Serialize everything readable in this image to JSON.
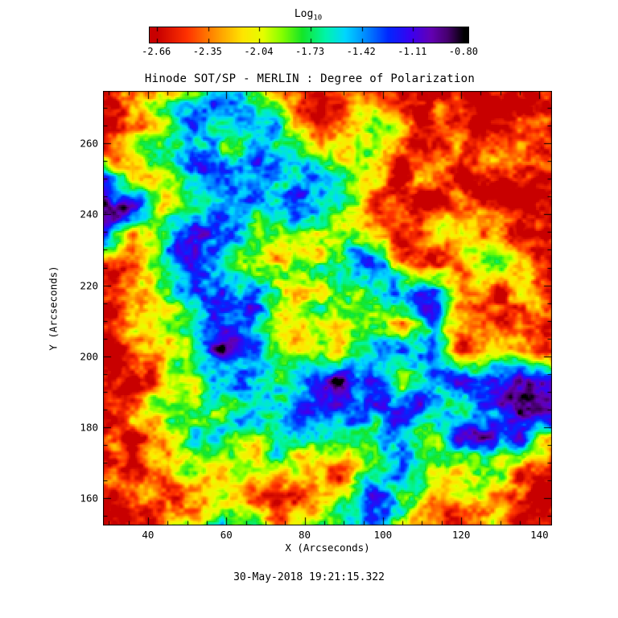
{
  "title": "Hinode SOT/SP - MERLIN : Degree of Polarization",
  "timestamp": "30-May-2018 19:21:15.322",
  "colorbar": {
    "label_main": "Log",
    "label_sub": "10",
    "ticks": [
      -2.66,
      -2.35,
      -2.04,
      -1.73,
      -1.42,
      -1.11,
      -0.8
    ],
    "tick_labels": [
      "-2.66",
      "-2.35",
      "-2.04",
      "-1.73",
      "-1.42",
      "-1.11",
      "-0.80"
    ]
  },
  "chart_data": {
    "type": "heatmap",
    "title": "Hinode SOT/SP - MERLIN : Degree of Polarization",
    "xlabel": "X (Arcseconds)",
    "ylabel": "Y (Arcseconds)",
    "xlim": [
      28.5,
      143.2
    ],
    "ylim": [
      152.3,
      274.8
    ],
    "x_ticks": [
      40,
      60,
      80,
      100,
      120,
      140
    ],
    "y_ticks": [
      160,
      180,
      200,
      220,
      240,
      260
    ],
    "colorbar_label": "Log10",
    "colorbar_ticks": [
      -2.66,
      -2.35,
      -2.04,
      -1.73,
      -1.42,
      -1.11,
      -0.8
    ],
    "value_range": [
      -2.66,
      -0.8
    ],
    "legend_position": "top-colorbar",
    "grid": "off",
    "colormap": [
      [
        -2.66,
        200,
        0,
        0
      ],
      [
        -2.48,
        255,
        50,
        0
      ],
      [
        -2.3,
        255,
        150,
        0
      ],
      [
        -2.14,
        255,
        230,
        0
      ],
      [
        -2.02,
        230,
        255,
        0
      ],
      [
        -1.9,
        130,
        255,
        0
      ],
      [
        -1.78,
        20,
        230,
        40
      ],
      [
        -1.64,
        0,
        245,
        170
      ],
      [
        -1.52,
        0,
        215,
        255
      ],
      [
        -1.4,
        0,
        140,
        255
      ],
      [
        -1.26,
        0,
        40,
        255
      ],
      [
        -1.12,
        60,
        0,
        240
      ],
      [
        -1.0,
        100,
        0,
        180
      ],
      [
        -0.9,
        70,
        0,
        110
      ],
      [
        -0.8,
        0,
        0,
        0
      ]
    ],
    "values_note": "coarse 16x16 estimate of log10 polarization degree; row 0 = top of map (y~273), col 0 = left (x~29)",
    "values": [
      [
        -2.6,
        -2.5,
        -2.2,
        -1.8,
        -1.6,
        -1.85,
        -2.2,
        -2.55,
        -2.6,
        -2.3,
        -2.55,
        -2.6,
        -2.6,
        -2.55,
        -2.6,
        -2.6
      ],
      [
        -2.6,
        -2.3,
        -1.85,
        -1.3,
        -1.6,
        -1.3,
        -1.85,
        -2.3,
        -2.5,
        -1.9,
        -2.3,
        -2.6,
        -2.6,
        -2.5,
        -2.6,
        -2.6
      ],
      [
        -2.55,
        -2.25,
        -1.6,
        -1.3,
        -1.85,
        -1.55,
        -1.3,
        -1.85,
        -2.3,
        -1.9,
        -2.3,
        -2.6,
        -2.55,
        -2.3,
        -2.6,
        -2.6
      ],
      [
        -1.1,
        -2.2,
        -1.85,
        -1.55,
        -1.3,
        -1.3,
        -1.55,
        -1.3,
        -1.9,
        -2.25,
        -2.55,
        -2.3,
        -2.6,
        -2.6,
        -2.55,
        -2.6
      ],
      [
        -0.85,
        -1.0,
        -2.2,
        -1.55,
        -1.3,
        -1.45,
        -1.3,
        -1.55,
        -1.85,
        -2.25,
        -2.6,
        -2.55,
        -2.3,
        -2.6,
        -2.6,
        -2.6
      ],
      [
        -1.05,
        -2.25,
        -1.85,
        -1.3,
        -1.45,
        -1.6,
        -2.0,
        -2.05,
        -1.85,
        -2.3,
        -2.55,
        -2.3,
        -1.9,
        -2.3,
        -2.6,
        -2.6
      ],
      [
        -2.5,
        -2.3,
        -1.6,
        -1.3,
        -1.6,
        -1.85,
        -2.05,
        -1.9,
        -1.6,
        -1.3,
        -2.25,
        -2.55,
        -2.3,
        -1.9,
        -2.3,
        -2.6
      ],
      [
        -2.6,
        -2.45,
        -1.85,
        -1.6,
        -1.3,
        -1.45,
        -1.9,
        -2.05,
        -1.9,
        -1.6,
        -1.3,
        -1.3,
        -2.25,
        -2.55,
        -2.3,
        -2.6
      ],
      [
        -2.6,
        -2.3,
        -1.85,
        -1.6,
        -1.3,
        -1.3,
        -1.9,
        -2.05,
        -2.05,
        -1.85,
        -2.3,
        -1.3,
        -2.3,
        -2.55,
        -2.6,
        -2.55
      ],
      [
        -2.6,
        -2.5,
        -2.25,
        -1.85,
        -1.0,
        -1.45,
        -2.0,
        -1.9,
        -2.05,
        -1.85,
        -1.3,
        -1.45,
        -2.3,
        -1.9,
        -2.3,
        -2.6
      ],
      [
        -2.6,
        -2.55,
        -2.25,
        -1.85,
        -1.6,
        -1.3,
        -1.85,
        -1.3,
        -1.0,
        -1.3,
        -1.85,
        -1.3,
        -1.3,
        -1.12,
        -0.84,
        -1.0
      ],
      [
        -2.6,
        -2.3,
        -1.85,
        -1.6,
        -1.85,
        -1.3,
        -1.45,
        -1.3,
        -1.3,
        -1.45,
        -1.3,
        -1.3,
        -1.6,
        -1.3,
        -0.82,
        -0.85
      ],
      [
        -2.6,
        -2.55,
        -2.25,
        -1.85,
        -1.6,
        -1.85,
        -1.6,
        -1.85,
        -1.85,
        -1.85,
        -1.6,
        -1.85,
        -1.3,
        -1.0,
        -1.3,
        -2.2
      ],
      [
        -2.6,
        -2.55,
        -2.3,
        -1.85,
        -2.25,
        -1.9,
        -1.85,
        -2.3,
        -2.55,
        -1.9,
        -1.6,
        -1.85,
        -2.25,
        -1.9,
        -2.3,
        -2.6
      ],
      [
        -2.6,
        -2.3,
        -2.6,
        -2.3,
        -1.9,
        -2.3,
        -2.55,
        -2.3,
        -1.9,
        -1.3,
        -1.55,
        -2.25,
        -1.9,
        -2.3,
        -2.6,
        -2.6
      ],
      [
        -2.6,
        -2.55,
        -2.3,
        -1.9,
        -1.6,
        -1.85,
        -2.3,
        -1.9,
        -1.55,
        -1.3,
        -1.85,
        -2.3,
        -2.6,
        -2.3,
        -2.6,
        -2.6
      ]
    ]
  }
}
